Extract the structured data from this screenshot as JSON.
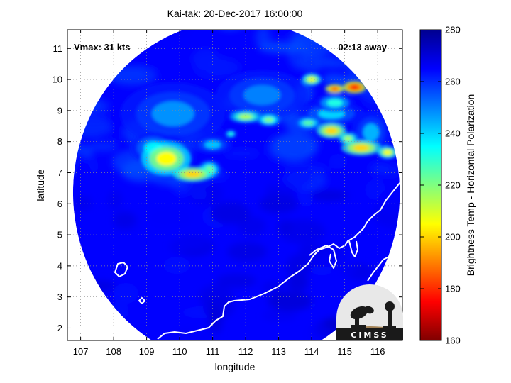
{
  "chart_data": {
    "type": "heatmap",
    "title": "Kai-tak: 20-Dec-2017 16:00:00",
    "xlabel": "longitude",
    "ylabel": "latitude",
    "xlim": [
      106.6,
      116.75
    ],
    "ylim": [
      1.6,
      11.6
    ],
    "xticks": [
      107,
      108,
      109,
      110,
      111,
      112,
      113,
      114,
      115,
      116
    ],
    "yticks": [
      2,
      3,
      4,
      5,
      6,
      7,
      8,
      9,
      10,
      11
    ],
    "grid": true,
    "swath_center": [
      111.72,
      6.35
    ],
    "swath_radius_lon": 4.95,
    "swath_radius_lat": 5.55,
    "background_temp": 265,
    "convection": [
      {
        "lon": 109.6,
        "lat": 7.45,
        "temp": 205,
        "lon_extent": 0.75,
        "lat_extent": 0.55
      },
      {
        "lon": 110.4,
        "lat": 6.95,
        "temp": 200,
        "lon_extent": 0.6,
        "lat_extent": 0.25
      },
      {
        "lon": 110.9,
        "lat": 7.1,
        "temp": 222,
        "lon_extent": 0.35,
        "lat_extent": 0.3
      },
      {
        "lon": 111.55,
        "lat": 8.25,
        "temp": 232,
        "lon_extent": 0.2,
        "lat_extent": 0.15
      },
      {
        "lon": 112.0,
        "lat": 8.8,
        "temp": 215,
        "lon_extent": 0.5,
        "lat_extent": 0.2
      },
      {
        "lon": 112.7,
        "lat": 8.7,
        "temp": 220,
        "lon_extent": 0.35,
        "lat_extent": 0.2
      },
      {
        "lon": 113.9,
        "lat": 8.6,
        "temp": 225,
        "lon_extent": 0.4,
        "lat_extent": 0.2
      },
      {
        "lon": 114.6,
        "lat": 8.35,
        "temp": 200,
        "lon_extent": 0.45,
        "lat_extent": 0.25
      },
      {
        "lon": 115.1,
        "lat": 8.1,
        "temp": 215,
        "lon_extent": 0.3,
        "lat_extent": 0.2
      },
      {
        "lon": 115.5,
        "lat": 7.8,
        "temp": 200,
        "lon_extent": 0.6,
        "lat_extent": 0.25
      },
      {
        "lon": 116.3,
        "lat": 7.65,
        "temp": 205,
        "lon_extent": 0.3,
        "lat_extent": 0.2
      },
      {
        "lon": 114.0,
        "lat": 10.0,
        "temp": 208,
        "lon_extent": 0.3,
        "lat_extent": 0.2
      },
      {
        "lon": 114.7,
        "lat": 9.7,
        "temp": 185,
        "lon_extent": 0.3,
        "lat_extent": 0.15
      },
      {
        "lon": 115.3,
        "lat": 9.75,
        "temp": 178,
        "lon_extent": 0.35,
        "lat_extent": 0.2
      },
      {
        "lon": 114.7,
        "lat": 9.25,
        "temp": 232,
        "lon_extent": 0.6,
        "lat_extent": 0.3
      },
      {
        "lon": 109.2,
        "lat": 7.8,
        "temp": 238,
        "lon_extent": 0.7,
        "lat_extent": 0.5
      },
      {
        "lon": 111.0,
        "lat": 7.9,
        "temp": 242,
        "lon_extent": 0.6,
        "lat_extent": 0.3
      },
      {
        "lon": 114.6,
        "lat": 8.9,
        "temp": 240,
        "lon_extent": 1.0,
        "lat_extent": 0.4
      },
      {
        "lon": 115.8,
        "lat": 8.3,
        "temp": 244,
        "lon_extent": 0.6,
        "lat_extent": 0.7
      },
      {
        "lon": 109.8,
        "lat": 8.9,
        "temp": 248,
        "lon_extent": 1.6,
        "lat_extent": 1.0
      },
      {
        "lon": 112.5,
        "lat": 9.5,
        "temp": 250,
        "lon_extent": 1.4,
        "lat_extent": 0.8
      }
    ],
    "colorbar": {
      "label": "Brightness Temp - Horizontal Polarization",
      "min": 160,
      "max": 280,
      "ticks": [
        160,
        180,
        200,
        220,
        240,
        260,
        280
      ]
    }
  },
  "annotations": {
    "vmax": "Vmax: 31 kts",
    "time_away": "02:13 away"
  },
  "logo": {
    "text": "CIMSS"
  },
  "colors": {
    "coastline": "#ffffff",
    "grid": "#8c8c8c",
    "logo_dark": "#1a1a1a",
    "logo_light": "#e8e8e8",
    "logo_earth": "#a38256"
  }
}
